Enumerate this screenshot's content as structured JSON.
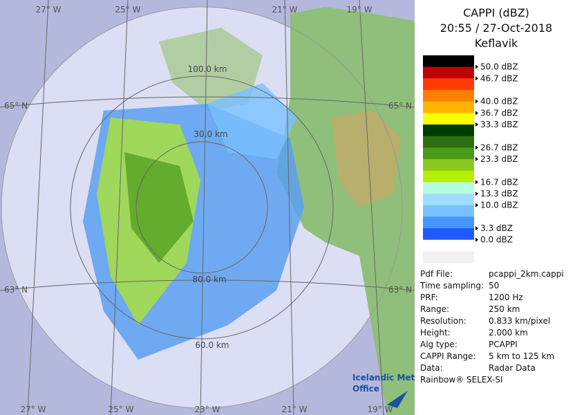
{
  "map": {
    "top_labels": [
      "27° W",
      "25° W",
      "21° W",
      "19° W"
    ],
    "bottom_labels": [
      "27° W",
      "25° W",
      "23° W",
      "21° W",
      "19° W"
    ],
    "left_labels": [
      "65° N",
      "63° N"
    ],
    "right_labels": [
      "65° N",
      "63° N"
    ],
    "ring_labels": [
      "100.0 km",
      "30.0 km",
      "80.0 km",
      "60.0 km"
    ],
    "logo": [
      "Icelandic Met",
      "Office"
    ]
  },
  "panel": {
    "title": [
      "CAPPI (dBZ)",
      "20:55 / 27-Oct-2018",
      "Keflavik"
    ],
    "legend": [
      {
        "color": "#000000"
      },
      {
        "color": "#c00000",
        "label": "50.0 dBZ"
      },
      {
        "color": "#ff3c00",
        "label": "46.7 dBZ"
      },
      {
        "color": "#ff8000"
      },
      {
        "color": "#ffb400",
        "label": "40.0 dBZ"
      },
      {
        "color": "#ffff00",
        "label": "36.7 dBZ"
      },
      {
        "color": "#003c00",
        "label": "33.3 dBZ"
      },
      {
        "color": "#2e6e10"
      },
      {
        "color": "#4a9a1a",
        "label": "26.7 dBZ"
      },
      {
        "color": "#8cc81e",
        "label": "23.3 dBZ"
      },
      {
        "color": "#b4f000"
      },
      {
        "color": "#b4ffe0",
        "label": "16.7 dBZ"
      },
      {
        "color": "#a0dcff",
        "label": "13.3 dBZ"
      },
      {
        "color": "#78c0ff",
        "label": "10.0 dBZ"
      },
      {
        "color": "#4696ff"
      },
      {
        "color": "#1e5aff",
        "label": "3.3 dBZ"
      },
      {
        "color": "#ffffff",
        "label": "0.0 dBZ"
      },
      {
        "color": "#f0f0f0"
      }
    ],
    "info": [
      [
        "Pdf File:",
        "pcappi_2km.cappi"
      ],
      [
        "Time sampling:",
        "50"
      ],
      [
        "PRF:",
        "1200 Hz"
      ],
      [
        "Range:",
        "250 km"
      ],
      [
        "Resolution:",
        "0.833 km/pixel"
      ],
      [
        "Height:",
        "2.000 km"
      ],
      [
        "Alg type:",
        "PCAPPI"
      ],
      [
        "CAPPI Range:",
        "5 km to 125 km"
      ],
      [
        "Data:",
        "Radar Data"
      ]
    ],
    "footer": "Rainbow® SELEX-SI"
  }
}
